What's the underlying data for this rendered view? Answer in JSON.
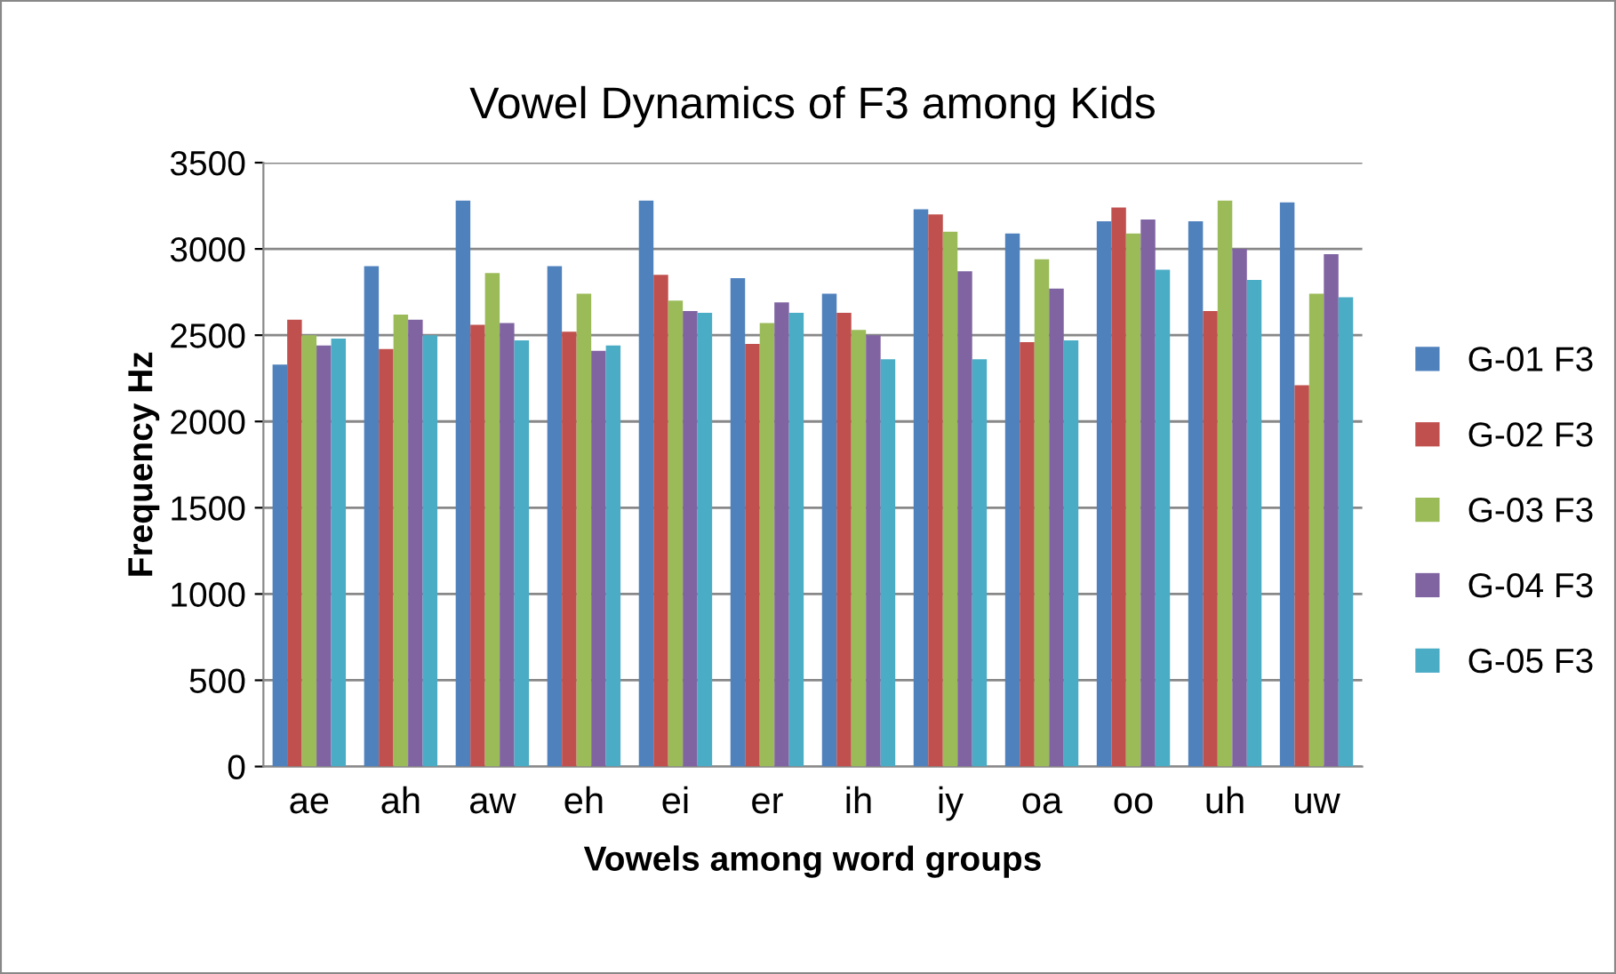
{
  "chart_data": {
    "type": "bar",
    "title": "Vowel Dynamics of F3 among Kids",
    "xlabel": "Vowels among word groups",
    "ylabel": "Frequency Hz",
    "categories": [
      "ae",
      "ah",
      "aw",
      "eh",
      "ei",
      "er",
      "ih",
      "iy",
      "oa",
      "oo",
      "uh",
      "uw"
    ],
    "series": [
      {
        "name": "G-01 F3",
        "color": "#4f81bd",
        "values": [
          2330,
          2900,
          3280,
          2900,
          3280,
          2830,
          2740,
          3230,
          3090,
          3160,
          3160,
          3270
        ]
      },
      {
        "name": "G-02 F3",
        "color": "#c0504d",
        "values": [
          2590,
          2420,
          2560,
          2520,
          2850,
          2450,
          2630,
          3200,
          2460,
          3240,
          2640,
          2210
        ]
      },
      {
        "name": "G-03 F3",
        "color": "#9bbb59",
        "values": [
          2500,
          2620,
          2860,
          2740,
          2700,
          2570,
          2530,
          3100,
          2940,
          3090,
          3280,
          2740
        ]
      },
      {
        "name": "G-04 F3",
        "color": "#8064a2",
        "values": [
          2440,
          2590,
          2570,
          2410,
          2640,
          2690,
          2500,
          2870,
          2770,
          3170,
          3000,
          2970
        ]
      },
      {
        "name": "G-05 F3",
        "color": "#4bacc6",
        "values": [
          2480,
          2500,
          2470,
          2440,
          2630,
          2630,
          2360,
          2360,
          2470,
          2880,
          2820,
          2720
        ]
      }
    ],
    "ylim": [
      0,
      3500
    ],
    "yticks": [
      0,
      500,
      1000,
      1500,
      2000,
      2500,
      3000,
      3500
    ],
    "grid": "y",
    "legend": "right"
  }
}
